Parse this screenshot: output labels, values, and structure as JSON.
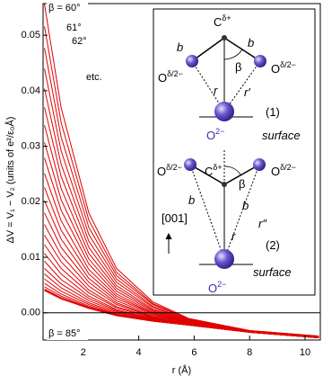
{
  "chart_data": {
    "type": "line",
    "xlabel": "r (Å)",
    "ylabel": "ΔV = V₁ − V₂ (units of e²/ε₀Å)",
    "x": [
      0.6,
      1.2,
      2.2,
      3.2,
      4.5,
      5.8,
      8,
      10.5
    ],
    "xlim": [
      0.55,
      10.55
    ],
    "xticks": [
      2,
      4,
      6,
      8,
      10
    ],
    "ylim": [
      -0.0049,
      0.0557
    ],
    "yticks": [
      {
        "value": 0,
        "label": "0.00"
      },
      {
        "value": 0.01,
        "label": "0.01"
      },
      {
        "value": 0.02,
        "label": "0.02"
      },
      {
        "value": 0.03,
        "label": "0.03"
      },
      {
        "value": 0.04,
        "label": "0.04"
      },
      {
        "value": 0.05,
        "label": "0.05"
      }
    ],
    "zero_line": true,
    "annotations": [
      "β = 60°",
      "61°",
      "62°",
      "etc.",
      "β = 85°"
    ],
    "series": [
      {
        "color": "#e00000",
        "values": [
          0.0556,
          0.037,
          0.018,
          0.008,
          0.002,
          -0.001,
          -0.0032,
          -0.0042
        ]
      },
      {
        "color": "#e00000",
        "values": [
          0.0516,
          0.0343,
          0.0167,
          0.0073,
          0.0017,
          -0.0011,
          -0.0032,
          -0.0042
        ]
      },
      {
        "color": "#e00000",
        "values": [
          0.0477,
          0.0317,
          0.0154,
          0.0067,
          0.0015,
          -0.0012,
          -0.0033,
          -0.0043
        ]
      },
      {
        "color": "#e00000",
        "values": [
          0.044,
          0.0292,
          0.0141,
          0.0061,
          0.0012,
          -0.0013,
          -0.0033,
          -0.0043
        ]
      },
      {
        "color": "#e00000",
        "values": [
          0.0404,
          0.0268,
          0.0129,
          0.0055,
          0.001,
          -0.0014,
          -0.0033,
          -0.0043
        ]
      },
      {
        "color": "#e00000",
        "values": [
          0.037,
          0.0246,
          0.0118,
          0.0049,
          0.0007,
          -0.0014,
          -0.0033,
          -0.0043
        ]
      },
      {
        "color": "#e00000",
        "values": [
          0.0338,
          0.0224,
          0.0107,
          0.0044,
          0.0005,
          -0.0015,
          -0.0033,
          -0.0043
        ]
      },
      {
        "color": "#e00000",
        "values": [
          0.0307,
          0.0204,
          0.0097,
          0.0039,
          0.0003,
          -0.0016,
          -0.0033,
          -0.0043
        ]
      },
      {
        "color": "#e00000",
        "values": [
          0.0279,
          0.0185,
          0.0088,
          0.0034,
          0.0001,
          -0.0016,
          -0.0034,
          -0.0044
        ]
      },
      {
        "color": "#e00000",
        "values": [
          0.0251,
          0.0166,
          0.0078,
          0.003,
          -0.0001,
          -0.0017,
          -0.0034,
          -0.0044
        ]
      },
      {
        "color": "#e00000",
        "values": [
          0.0226,
          0.0149,
          0.007,
          0.0026,
          -0.0002,
          -0.0018,
          -0.0034,
          -0.0044
        ]
      },
      {
        "color": "#e00000",
        "values": [
          0.0202,
          0.0133,
          0.0062,
          0.0022,
          -0.0004,
          -0.0018,
          -0.0034,
          -0.0044
        ]
      },
      {
        "color": "#e00000",
        "values": [
          0.018,
          0.0118,
          0.0055,
          0.0018,
          -0.0006,
          -0.0019,
          -0.0034,
          -0.0044
        ]
      },
      {
        "color": "#e00000",
        "values": [
          0.0159,
          0.0104,
          0.0048,
          0.0015,
          -0.0007,
          -0.0019,
          -0.0034,
          -0.0044
        ]
      },
      {
        "color": "#e00000",
        "values": [
          0.014,
          0.0092,
          0.0041,
          0.0011,
          -0.0008,
          -0.002,
          -0.0034,
          -0.0044
        ]
      },
      {
        "color": "#e00000",
        "values": [
          0.0123,
          0.008,
          0.0036,
          0.0009,
          -0.0009,
          -0.002,
          -0.0035,
          -0.0045
        ]
      },
      {
        "color": "#e00000",
        "values": [
          0.0107,
          0.007,
          0.003,
          0.0006,
          -0.001,
          -0.0021,
          -0.0035,
          -0.0045
        ]
      },
      {
        "color": "#e00000",
        "values": [
          0.0093,
          0.006,
          0.0026,
          0.0004,
          -0.0011,
          -0.0021,
          -0.0035,
          -0.0045
        ]
      },
      {
        "color": "#e00000",
        "values": [
          0.008,
          0.0052,
          0.0022,
          0.0002,
          -0.0012,
          -0.0021,
          -0.0035,
          -0.0045
        ]
      },
      {
        "color": "#e00000",
        "values": [
          0.007,
          0.0045,
          0.0018,
          0,
          -0.0013,
          -0.0021,
          -0.0035,
          -0.0045
        ]
      },
      {
        "color": "#e00000",
        "values": [
          0.0061,
          0.0039,
          0.0015,
          -0.0002,
          -0.0013,
          -0.0022,
          -0.0035,
          -0.0045
        ]
      },
      {
        "color": "#e00000",
        "values": [
          0.0053,
          0.0034,
          0.0012,
          -0.0003,
          -0.0014,
          -0.0022,
          -0.0035,
          -0.0045
        ]
      },
      {
        "color": "#e00000",
        "values": [
          0.0047,
          0.003,
          0.001,
          -0.0004,
          -0.0014,
          -0.0022,
          -0.0035,
          -0.0045
        ]
      },
      {
        "color": "#e00000",
        "values": [
          0.0043,
          0.0027,
          0.0009,
          -0.0004,
          -0.0015,
          -0.0022,
          -0.0035,
          -0.0045
        ]
      },
      {
        "color": "#e00000",
        "values": [
          0.0041,
          0.0026,
          0.0008,
          -0.0005,
          -0.0015,
          -0.0022,
          -0.0035,
          -0.0045
        ]
      },
      {
        "color": "#e00000",
        "values": [
          0.004,
          0.0025,
          0.0008,
          -0.0005,
          -0.0015,
          -0.0022,
          -0.0035,
          -0.0045
        ]
      }
    ],
    "inset": {
      "labels": [
        {
          "text": "C",
          "sup": "δ+"
        },
        {
          "text": "b"
        },
        {
          "text": "b"
        },
        {
          "text": "β"
        },
        {
          "text": "O",
          "sup": "δ/2−"
        },
        {
          "text": "O",
          "sup": "δ/2−"
        },
        {
          "text": "r"
        },
        {
          "text": "r′"
        },
        {
          "text": "(1)"
        },
        {
          "text": "O",
          "sup": "2−"
        },
        {
          "text": "surface"
        },
        {
          "text": "O",
          "sup": "δ/2−"
        },
        {
          "text": "C",
          "sup": "δ+"
        },
        {
          "text": "O",
          "sup": "δ/2−"
        },
        {
          "text": "β"
        },
        {
          "text": "b"
        },
        {
          "text": "b"
        },
        {
          "text": "r″"
        },
        {
          "text": "r"
        },
        {
          "text": "(2)"
        },
        {
          "text": "[001]"
        },
        {
          "text": "surface"
        },
        {
          "text": "O",
          "sup": "2−"
        }
      ]
    }
  }
}
